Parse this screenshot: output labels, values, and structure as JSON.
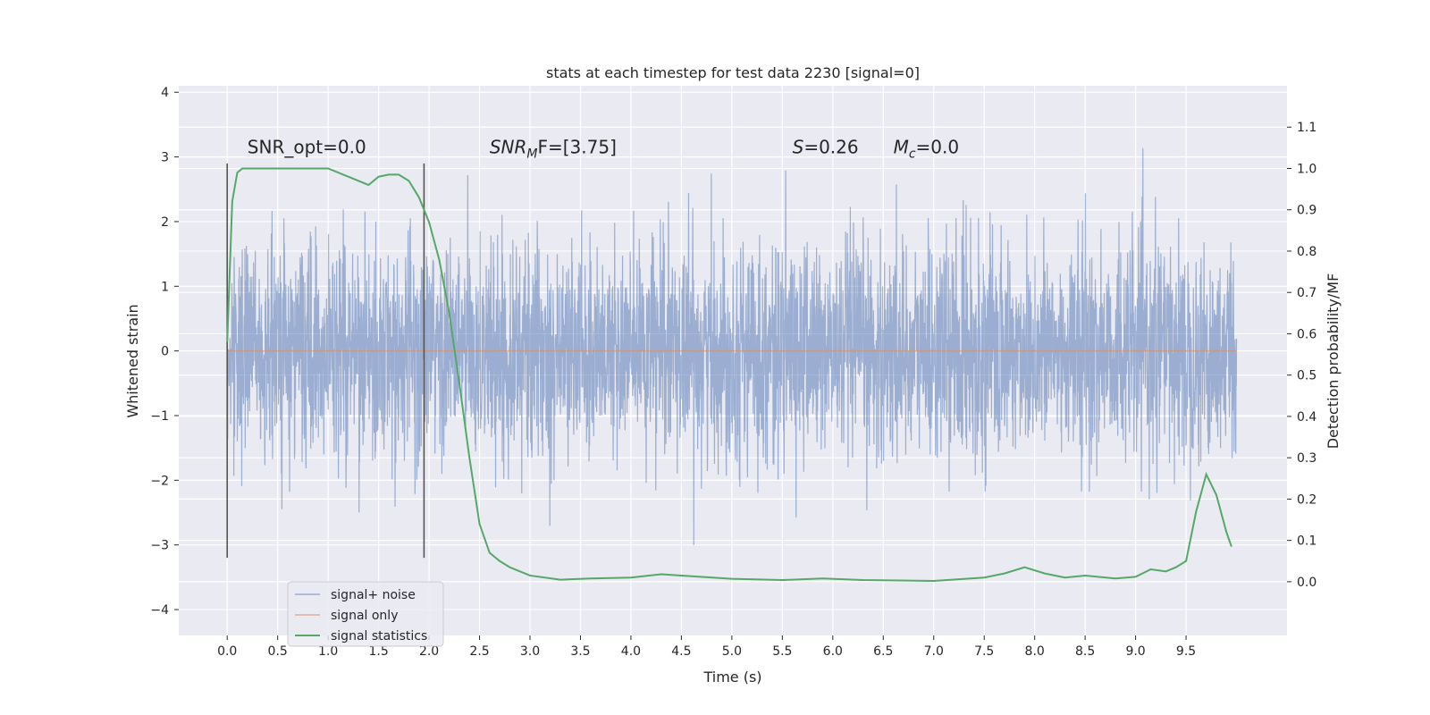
{
  "chart_data": {
    "type": "line",
    "title": "stats at each timestep for test data 2230 [signal=0]",
    "xlabel": "Time (s)",
    "ylabel": "Whitened strain",
    "y2label": "Detection probability/MF",
    "xlim": [
      -0.48,
      10.5
    ],
    "ylim": [
      -4.4,
      4.1
    ],
    "y2lim": [
      -0.13,
      1.2
    ],
    "xticks": [
      "0.0",
      "0.5",
      "1.0",
      "1.5",
      "2.0",
      "2.5",
      "3.0",
      "3.5",
      "4.0",
      "4.5",
      "5.0",
      "5.5",
      "6.0",
      "6.5",
      "7.0",
      "7.5",
      "8.0",
      "8.5",
      "9.0",
      "9.5"
    ],
    "yticks": [
      "4",
      "3",
      "2",
      "1",
      "0",
      "−1",
      "−2",
      "−3",
      "−4"
    ],
    "y2ticks": [
      "1.1",
      "1.0",
      "0.9",
      "0.8",
      "0.7",
      "0.6",
      "0.5",
      "0.4",
      "0.3",
      "0.2",
      "0.1",
      "0.0"
    ],
    "annotations": [
      {
        "text": "SNR_opt=0.0",
        "x": 0.2,
        "y": 3.0
      },
      {
        "text": "SNR",
        "sub": "M",
        "tail": "F=[3.75]",
        "italic": true,
        "x": 2.6,
        "y": 3.0
      },
      {
        "text": "S",
        "tail": "=0.26",
        "italic": true,
        "x": 5.6,
        "y": 3.0
      },
      {
        "text": "M",
        "sub": "c",
        "tail": "=0.0",
        "italic": true,
        "x": 6.6,
        "y": 3.0
      }
    ],
    "vlines": [
      {
        "x": 0.0,
        "ymin": -3.2,
        "ymax": 2.9
      },
      {
        "x": 1.95,
        "ymin": -3.2,
        "ymax": 2.9
      }
    ],
    "noise": {
      "x_start": 0.0,
      "x_end": 10.0,
      "samples": 4096,
      "std": 0.82
    },
    "series": [
      {
        "name": "signal+ noise",
        "color": "#4c72b0",
        "opacity": 0.5,
        "axis": "left"
      },
      {
        "name": "signal only",
        "color": "#dd8452",
        "opacity": 0.6,
        "axis": "left",
        "x": [
          0,
          10
        ],
        "y": [
          0,
          0
        ]
      },
      {
        "name": "signal statistics",
        "color": "#55a868",
        "axis": "right",
        "x": [
          0.0,
          0.05,
          0.1,
          0.15,
          0.2,
          0.3,
          0.5,
          0.7,
          0.9,
          1.0,
          1.1,
          1.2,
          1.3,
          1.4,
          1.5,
          1.6,
          1.7,
          1.8,
          1.9,
          2.0,
          2.1,
          2.2,
          2.3,
          2.4,
          2.5,
          2.6,
          2.7,
          2.8,
          3.0,
          3.3,
          3.6,
          4.0,
          4.3,
          4.5,
          5.0,
          5.5,
          5.9,
          6.3,
          7.0,
          7.5,
          7.7,
          7.9,
          8.1,
          8.3,
          8.5,
          8.8,
          9.0,
          9.15,
          9.3,
          9.4,
          9.5,
          9.6,
          9.7,
          9.8,
          9.9,
          9.95
        ],
        "y": [
          0.58,
          0.92,
          0.99,
          1.0,
          1.0,
          1.0,
          1.0,
          1.0,
          1.0,
          1.0,
          0.99,
          0.98,
          0.97,
          0.96,
          0.98,
          0.985,
          0.985,
          0.97,
          0.93,
          0.87,
          0.78,
          0.65,
          0.48,
          0.3,
          0.14,
          0.07,
          0.05,
          0.035,
          0.015,
          0.005,
          0.008,
          0.01,
          0.018,
          0.015,
          0.007,
          0.004,
          0.008,
          0.004,
          0.002,
          0.01,
          0.02,
          0.035,
          0.02,
          0.01,
          0.015,
          0.008,
          0.012,
          0.03,
          0.025,
          0.035,
          0.05,
          0.17,
          0.26,
          0.21,
          0.12,
          0.085
        ]
      }
    ],
    "legend": "lower-left",
    "grid": true
  }
}
